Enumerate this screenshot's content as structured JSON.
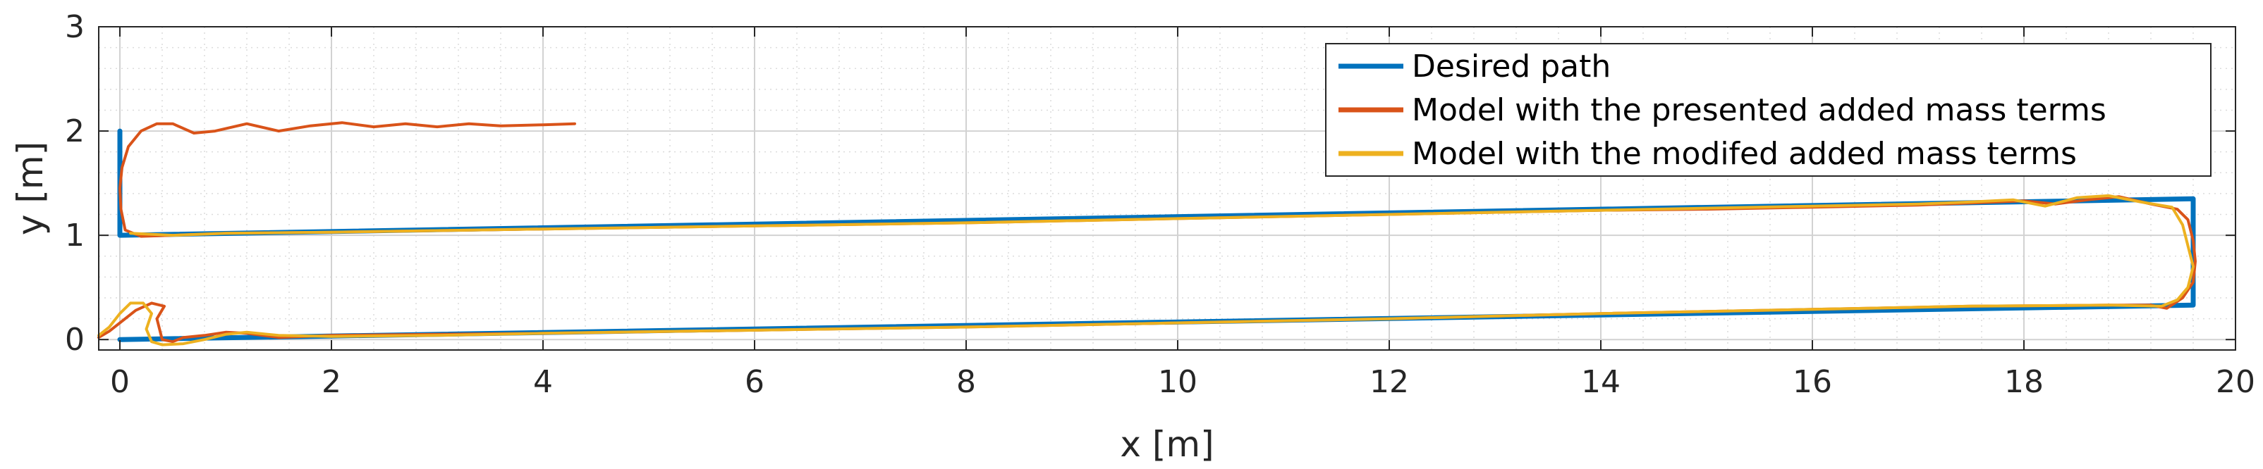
{
  "chart_data": {
    "type": "line",
    "title": "",
    "xlabel": "x [m]",
    "ylabel": "y [m]",
    "xlim": [
      -0.2,
      20
    ],
    "ylim": [
      -0.1,
      3
    ],
    "xticks": [
      "0",
      "2",
      "4",
      "6",
      "8",
      "10",
      "12",
      "14",
      "16",
      "18",
      "20"
    ],
    "yticks": [
      "0",
      "1",
      "2",
      "3"
    ],
    "grid": true,
    "minor_grid": true,
    "legend_position": "top-right",
    "series": [
      {
        "name": "Desired path",
        "color": "#0072BD",
        "points": [
          [
            0,
            2.0
          ],
          [
            0,
            1.0
          ],
          [
            19.6,
            1.35
          ],
          [
            19.6,
            0.33
          ],
          [
            0,
            0.0
          ]
        ]
      },
      {
        "name": "Model with the presented added mass terms",
        "color": "#D95319",
        "points": [
          [
            4.3,
            2.07
          ],
          [
            4.0,
            2.06
          ],
          [
            3.6,
            2.05
          ],
          [
            3.3,
            2.07
          ],
          [
            3.0,
            2.04
          ],
          [
            2.7,
            2.07
          ],
          [
            2.4,
            2.04
          ],
          [
            2.1,
            2.08
          ],
          [
            1.8,
            2.05
          ],
          [
            1.5,
            2.0
          ],
          [
            1.2,
            2.07
          ],
          [
            0.9,
            2.0
          ],
          [
            0.7,
            1.98
          ],
          [
            0.5,
            2.07
          ],
          [
            0.35,
            2.07
          ],
          [
            0.2,
            2.0
          ],
          [
            0.08,
            1.85
          ],
          [
            0.02,
            1.65
          ],
          [
            0.0,
            1.45
          ],
          [
            0.01,
            1.25
          ],
          [
            0.05,
            1.05
          ],
          [
            0.2,
            0.99
          ],
          [
            0.5,
            1.0
          ],
          [
            1.0,
            1.02
          ],
          [
            2,
            1.03
          ],
          [
            4,
            1.06
          ],
          [
            6,
            1.09
          ],
          [
            8,
            1.12
          ],
          [
            10,
            1.16
          ],
          [
            12,
            1.2
          ],
          [
            14,
            1.24
          ],
          [
            15,
            1.25
          ],
          [
            16,
            1.27
          ],
          [
            17,
            1.29
          ],
          [
            17.5,
            1.31
          ],
          [
            18,
            1.33
          ],
          [
            18.3,
            1.3
          ],
          [
            18.6,
            1.34
          ],
          [
            18.9,
            1.37
          ],
          [
            19.2,
            1.3
          ],
          [
            19.45,
            1.25
          ],
          [
            19.55,
            1.15
          ],
          [
            19.6,
            0.95
          ],
          [
            19.62,
            0.75
          ],
          [
            19.6,
            0.55
          ],
          [
            19.5,
            0.4
          ],
          [
            19.35,
            0.3
          ],
          [
            19.2,
            0.33
          ],
          [
            18.8,
            0.33
          ],
          [
            17.5,
            0.32
          ],
          [
            16,
            0.29
          ],
          [
            14,
            0.25
          ],
          [
            12,
            0.2
          ],
          [
            10,
            0.16
          ],
          [
            8,
            0.12
          ],
          [
            6,
            0.09
          ],
          [
            4,
            0.06
          ],
          [
            3,
            0.05
          ],
          [
            2,
            0.04
          ],
          [
            1.5,
            0.02
          ],
          [
            1.2,
            0.06
          ],
          [
            1.0,
            0.07
          ],
          [
            0.8,
            0.04
          ],
          [
            0.6,
            0.02
          ],
          [
            0.5,
            -0.02
          ],
          [
            0.4,
            0.0
          ],
          [
            0.35,
            0.2
          ],
          [
            0.42,
            0.32
          ],
          [
            0.3,
            0.35
          ],
          [
            0.15,
            0.28
          ],
          [
            0.05,
            0.2
          ],
          [
            -0.1,
            0.08
          ],
          [
            -0.2,
            0.02
          ]
        ]
      },
      {
        "name": "Model with the modifed added mass terms",
        "color": "#EDB120",
        "points": [
          [
            0.1,
            1.02
          ],
          [
            0.5,
            1.0
          ],
          [
            1.0,
            1.02
          ],
          [
            2,
            1.03
          ],
          [
            4,
            1.06
          ],
          [
            6,
            1.09
          ],
          [
            8,
            1.12
          ],
          [
            10,
            1.16
          ],
          [
            12,
            1.2
          ],
          [
            14,
            1.24
          ],
          [
            15,
            1.26
          ],
          [
            16,
            1.28
          ],
          [
            17,
            1.3
          ],
          [
            17.5,
            1.32
          ],
          [
            17.9,
            1.34
          ],
          [
            18.2,
            1.28
          ],
          [
            18.5,
            1.36
          ],
          [
            18.8,
            1.38
          ],
          [
            19.1,
            1.32
          ],
          [
            19.4,
            1.27
          ],
          [
            19.5,
            1.1
          ],
          [
            19.55,
            0.9
          ],
          [
            19.6,
            0.7
          ],
          [
            19.55,
            0.5
          ],
          [
            19.45,
            0.38
          ],
          [
            19.3,
            0.32
          ],
          [
            18.8,
            0.33
          ],
          [
            17.5,
            0.32
          ],
          [
            16,
            0.29
          ],
          [
            14,
            0.25
          ],
          [
            12,
            0.2
          ],
          [
            10,
            0.16
          ],
          [
            8,
            0.12
          ],
          [
            6,
            0.09
          ],
          [
            4,
            0.06
          ],
          [
            3,
            0.04
          ],
          [
            2,
            0.03
          ],
          [
            1.5,
            0.04
          ],
          [
            1.2,
            0.07
          ],
          [
            1.0,
            0.05
          ],
          [
            0.8,
            0.0
          ],
          [
            0.6,
            -0.04
          ],
          [
            0.4,
            -0.05
          ],
          [
            0.3,
            -0.02
          ],
          [
            0.25,
            0.1
          ],
          [
            0.3,
            0.25
          ],
          [
            0.22,
            0.35
          ],
          [
            0.1,
            0.35
          ],
          [
            0.0,
            0.25
          ],
          [
            -0.1,
            0.12
          ],
          [
            -0.2,
            0.04
          ]
        ]
      }
    ]
  }
}
